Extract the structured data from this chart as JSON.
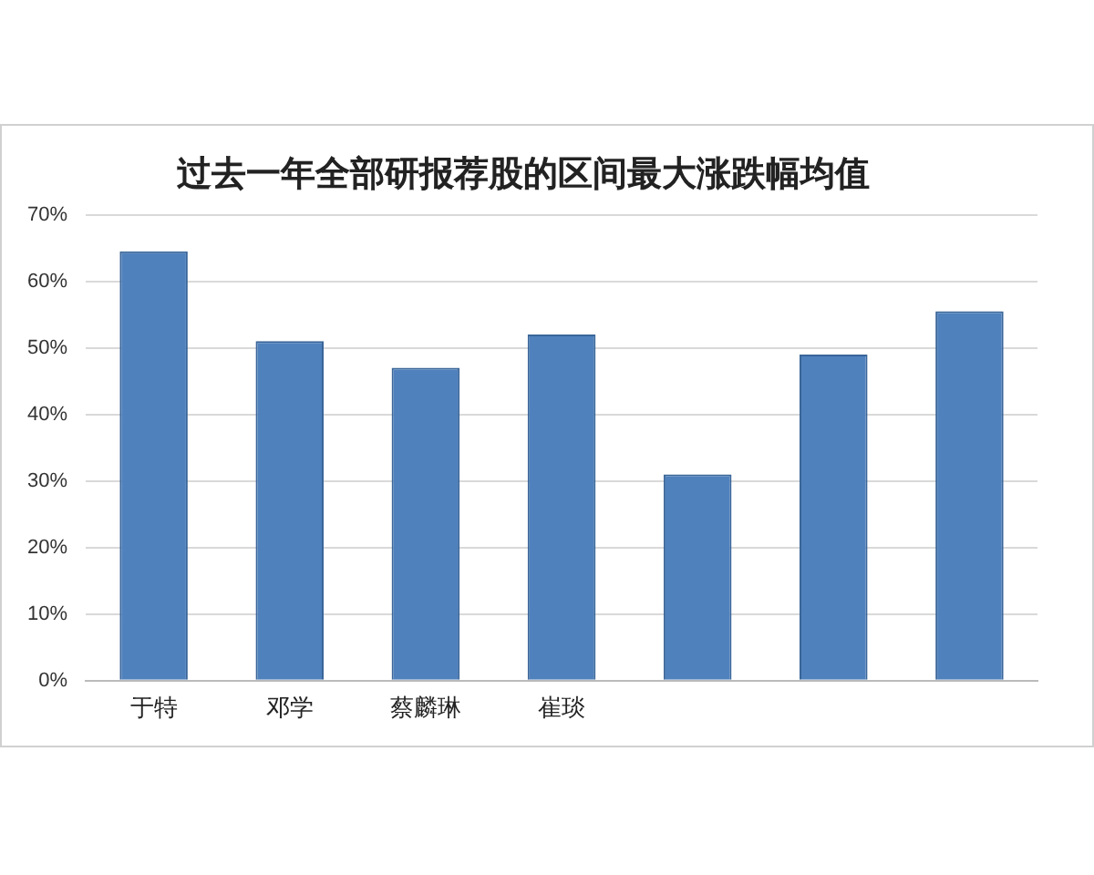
{
  "chart_data": {
    "type": "bar",
    "title": "过去一年全部研报荐股的区间最大涨跌幅均值",
    "categories": [
      "于特",
      "邓学",
      "蔡麟琳",
      "崔琰",
      null,
      null,
      null
    ],
    "values": [
      64.5,
      51,
      47,
      52,
      31,
      49,
      55.5
    ],
    "color": "#4f81bd",
    "ylim": [
      0,
      70
    ],
    "yticks": [
      {
        "value": 0,
        "label": "0%"
      },
      {
        "value": 10,
        "label": "10%"
      },
      {
        "value": 20,
        "label": "20%"
      },
      {
        "value": 30,
        "label": "30%"
      },
      {
        "value": 40,
        "label": "40%"
      },
      {
        "value": 50,
        "label": "50%"
      },
      {
        "value": 60,
        "label": "60%"
      },
      {
        "value": 70,
        "label": "70%"
      }
    ],
    "grid": "y",
    "legend": false
  }
}
